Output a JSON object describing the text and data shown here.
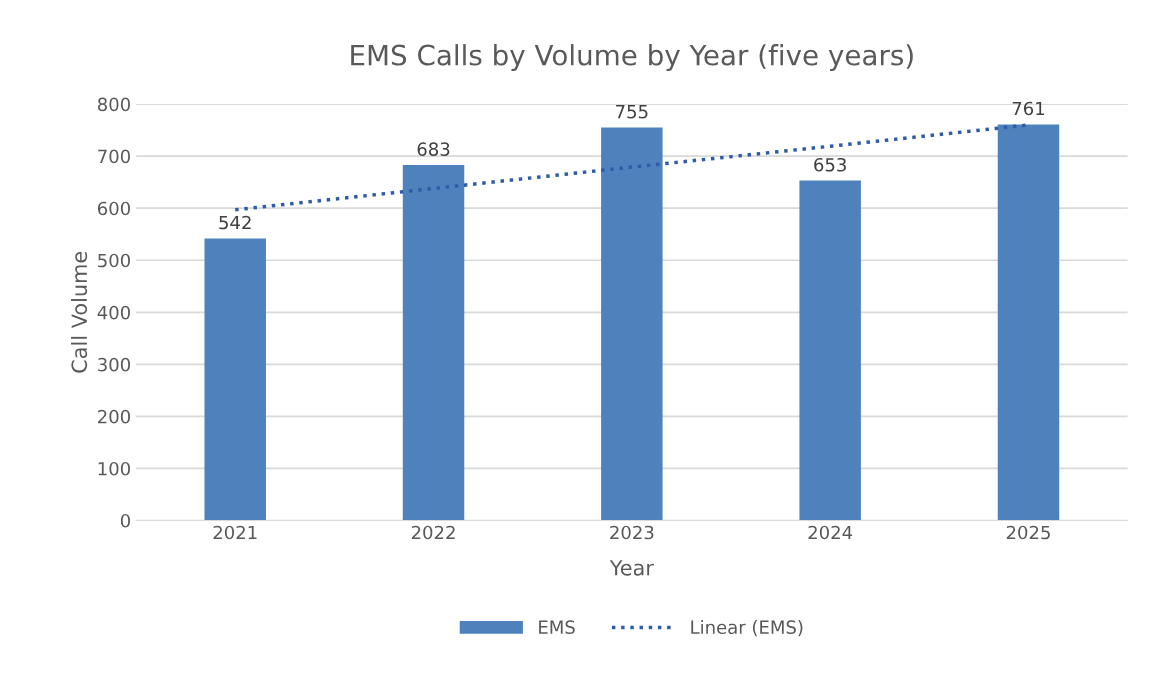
{
  "chart_data": {
    "type": "bar",
    "title": "EMS Calls by Volume by Year (five years)",
    "xlabel": "Year",
    "ylabel": "Call Volume",
    "categories": [
      "2021",
      "2022",
      "2023",
      "2024",
      "2025"
    ],
    "series": [
      {
        "name": "EMS",
        "color": "#4f81bd",
        "values": [
          542,
          683,
          755,
          653,
          761
        ],
        "data_labels": true
      },
      {
        "name": "Linear (EMS)",
        "type": "line",
        "color": "#2e5ca8",
        "line_style": "dotted",
        "values": [
          597,
          638,
          679,
          719,
          760
        ]
      }
    ],
    "ylim": [
      0,
      800
    ],
    "yticks": [
      0,
      100,
      200,
      300,
      400,
      500,
      600,
      700,
      800
    ],
    "grid": "y",
    "legend": "bottom"
  }
}
